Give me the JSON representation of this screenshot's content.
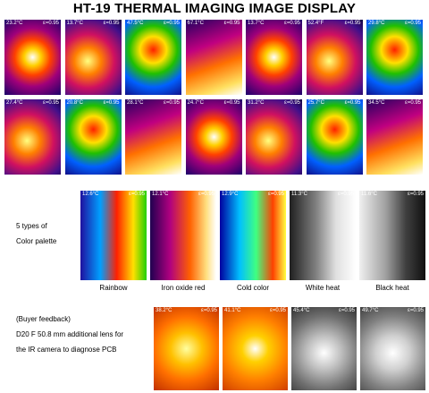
{
  "header": {
    "title": "HT-19 THERMAL IMAGING IMAGE DISPLAY"
  },
  "gallery": {
    "rows": [
      [
        {
          "temp": "23.2°C",
          "emissivity": "ε=0.95"
        },
        {
          "temp": "13.7°C",
          "emissivity": "ε=0.95"
        },
        {
          "temp": "47.5°C",
          "emissivity": "ε=0.95"
        },
        {
          "temp": "67.1°C",
          "emissivity": "ε=0.95"
        },
        {
          "temp": "13.7°C",
          "emissivity": "ε=0.95"
        },
        {
          "temp": "52.4°F",
          "emissivity": "ε=0.95"
        },
        {
          "temp": "29.8°C",
          "emissivity": "ε=0.95"
        }
      ],
      [
        {
          "temp": "27.4°C",
          "emissivity": "ε=0.95"
        },
        {
          "temp": "20.8°C",
          "emissivity": "ε=0.95"
        },
        {
          "temp": "28.1°C",
          "emissivity": "ε=0.95"
        },
        {
          "temp": "24.7°C",
          "emissivity": "ε=0.95"
        },
        {
          "temp": "31.2°C",
          "emissivity": "ε=0.95"
        },
        {
          "temp": "25.7°C",
          "emissivity": "ε=0.95"
        },
        {
          "temp": "34.5°C",
          "emissivity": "ε=0.95"
        }
      ]
    ]
  },
  "palettes": {
    "label_lines": [
      "5 types of",
      "Color palette"
    ],
    "items": [
      {
        "temp": "12.6°C",
        "emissivity": "ε=0.95",
        "caption": "Rainbow"
      },
      {
        "temp": "12.1°C",
        "emissivity": "ε=0.95",
        "caption": "Iron oxide red"
      },
      {
        "temp": "12.9°C",
        "emissivity": "ε=0.95",
        "caption": "Cold color"
      },
      {
        "temp": "11.3°C",
        "emissivity": "ε=0.95",
        "caption": "White heat"
      },
      {
        "temp": "11.6°C",
        "emissivity": "ε=0.95",
        "caption": "Black heat"
      }
    ]
  },
  "feedback": {
    "lines": [
      "(Buyer feedback)",
      "D20 F 50.8 mm additional lens for",
      "the IR camera to diagnose PCB"
    ],
    "items": [
      {
        "temp": "38.2°C",
        "emissivity": "ε=0.95"
      },
      {
        "temp": "41.1°C",
        "emissivity": "ε=0.95"
      },
      {
        "temp": "45.4°C",
        "emissivity": "ε=0.95"
      },
      {
        "temp": "49.7°C",
        "emissivity": "ε=0.95"
      }
    ]
  }
}
